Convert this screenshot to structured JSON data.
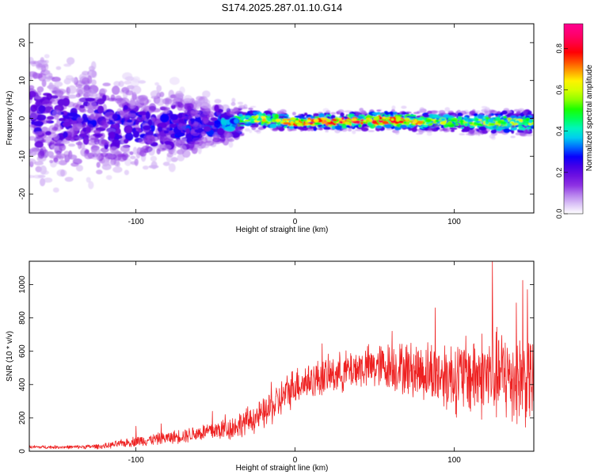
{
  "title": "S174.2025.287.01.10.G14",
  "chart_data": [
    {
      "type": "heatmap",
      "title": "S174.2025.287.01.10.G14",
      "xlabel": "Height of straight line (km)",
      "ylabel": "Frequency (Hz)",
      "xlim": [
        -167,
        150
      ],
      "ylim": [
        -25,
        25
      ],
      "x_ticks": [
        -100,
        0,
        100
      ],
      "x_tick_labels": [
        "-100",
        "0",
        "100"
      ],
      "y_ticks": [
        -20,
        -10,
        0,
        10,
        20
      ],
      "y_tick_labels": [
        "-20",
        "-10",
        "0",
        "10",
        "20"
      ],
      "colorbar": {
        "label": "Normalized spectral amplitude",
        "range": [
          0,
          0.92
        ],
        "ticks": [
          0.0,
          0.2,
          0.4,
          0.6,
          0.8
        ],
        "tick_labels": [
          "0.0",
          "0.2",
          "0.4",
          "0.6",
          "0.8"
        ],
        "colormap": [
          "#ffffff",
          "#c9a4f2",
          "#8a2be2",
          "#5a00e0",
          "#0000ff",
          "#00c0ff",
          "#00ffb0",
          "#00ff00",
          "#b0ff00",
          "#ffff00",
          "#ff8000",
          "#ff0000",
          "#ff0060",
          "#ff0090"
        ]
      },
      "description_points": {
        "band_center_hz": [
          [
            -167,
            0
          ],
          [
            -100,
            -2
          ],
          [
            -60,
            -2
          ],
          [
            -35,
            -1
          ],
          [
            -30,
            0
          ],
          [
            0,
            -1
          ],
          [
            50,
            -0.5
          ],
          [
            100,
            -1
          ],
          [
            150,
            -1
          ]
        ],
        "band_halfwidth_hz": [
          [
            -167,
            15
          ],
          [
            -100,
            9
          ],
          [
            -60,
            6
          ],
          [
            -40,
            4
          ],
          [
            -30,
            2
          ],
          [
            0,
            1.5
          ],
          [
            100,
            2
          ],
          [
            150,
            2.5
          ]
        ],
        "peak_amplitude": [
          [
            -167,
            0.25
          ],
          [
            -100,
            0.3
          ],
          [
            -50,
            0.35
          ],
          [
            -30,
            0.6
          ],
          [
            0,
            0.75
          ],
          [
            30,
            0.85
          ],
          [
            60,
            0.8
          ],
          [
            100,
            0.55
          ],
          [
            150,
            0.6
          ]
        ]
      }
    },
    {
      "type": "line",
      "xlabel": "Height of straight line (km)",
      "ylabel": "SNR (10 * v/v)",
      "xlim": [
        -167,
        150
      ],
      "ylim": [
        0,
        1140
      ],
      "x_ticks": [
        -100,
        0,
        100
      ],
      "x_tick_labels": [
        "-100",
        "0",
        "100"
      ],
      "y_ticks": [
        0,
        200,
        400,
        600,
        800,
        1000
      ],
      "y_tick_labels": [
        "0",
        "200",
        "400",
        "600",
        "800",
        "1000"
      ],
      "line_color": "#ee2222",
      "series": [
        {
          "name": "SNR",
          "envelope_x": [
            -167,
            -140,
            -120,
            -100,
            -80,
            -60,
            -40,
            -20,
            -10,
            0,
            20,
            40,
            60,
            80,
            100,
            120,
            140,
            150
          ],
          "envelope_mean": [
            25,
            25,
            30,
            60,
            80,
            110,
            140,
            220,
            300,
            400,
            450,
            500,
            510,
            480,
            450,
            460,
            440,
            430
          ],
          "envelope_spread": [
            10,
            10,
            15,
            30,
            35,
            50,
            70,
            90,
            110,
            110,
            110,
            120,
            140,
            170,
            220,
            260,
            280,
            260
          ],
          "peaks": [
            [
              -100,
              150
            ],
            [
              -84,
              165
            ],
            [
              -52,
              240
            ],
            [
              -44,
              220
            ],
            [
              -15,
              415
            ],
            [
              -8,
              300
            ],
            [
              17,
              645
            ],
            [
              61,
              720
            ],
            [
              88,
              860
            ],
            [
              104,
              580
            ],
            [
              124,
              1140
            ],
            [
              132,
              650
            ],
            [
              139,
              890
            ],
            [
              143,
              1025
            ],
            [
              146,
              970
            ]
          ]
        }
      ]
    }
  ]
}
